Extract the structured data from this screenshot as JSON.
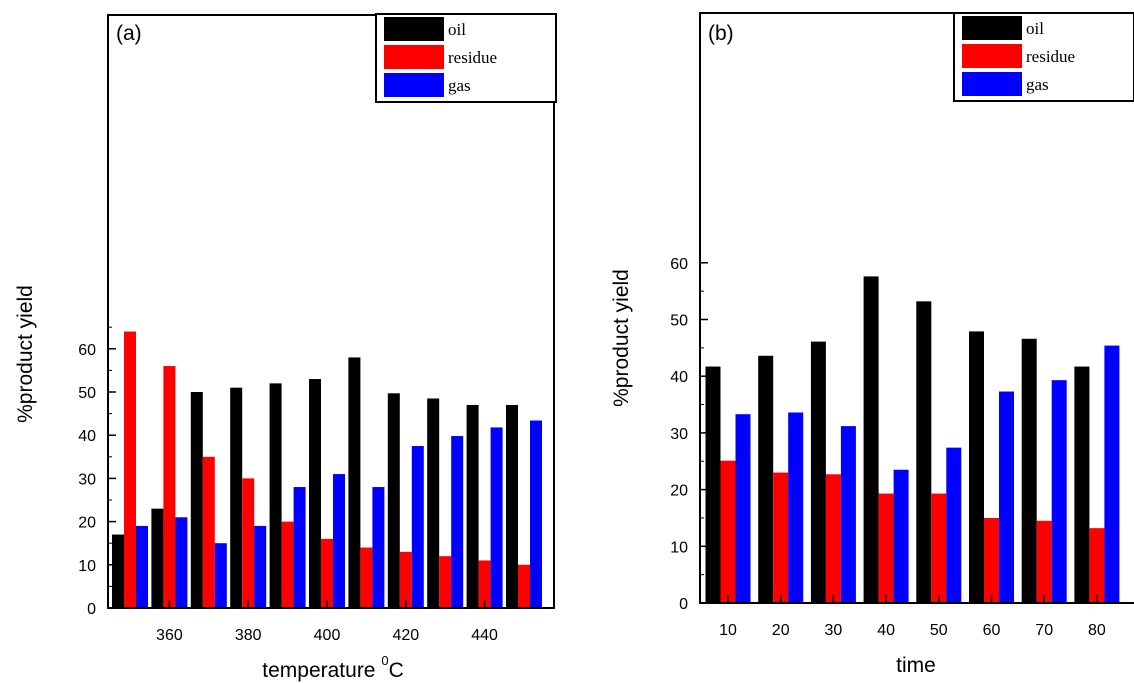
{
  "chart_data": [
    {
      "type": "bar",
      "panel_label": "(a)",
      "x": [
        350,
        360,
        370,
        380,
        390,
        400,
        410,
        420,
        430,
        440,
        450
      ],
      "x_tick_labels": [
        "360",
        "380",
        "400",
        "420",
        "440"
      ],
      "x_tick_values": [
        360,
        380,
        400,
        420,
        440
      ],
      "xlabel_main": "temperature ",
      "xlabel_sup": "0",
      "xlabel_end": "C",
      "ylabel": "%product yield",
      "ylim": [
        0,
        70
      ],
      "y_ticks": [
        0,
        10,
        20,
        30,
        40,
        50,
        60
      ],
      "legend_position": "top-right",
      "series": [
        {
          "name": "oil",
          "color": "#000000",
          "values": [
            17,
            23,
            50,
            51,
            52,
            53,
            58,
            49.7,
            48.5,
            47,
            47
          ]
        },
        {
          "name": "residue",
          "color": "#ff0000",
          "values": [
            64,
            56,
            35,
            30,
            20,
            16,
            14,
            13,
            12,
            11,
            10
          ]
        },
        {
          "name": "gas",
          "color": "#0000ff",
          "values": [
            19,
            21,
            15,
            19,
            28,
            31,
            28,
            37.5,
            39.8,
            41.8,
            43.4
          ]
        }
      ]
    },
    {
      "type": "bar",
      "panel_label": "(b)",
      "x": [
        10,
        20,
        30,
        40,
        50,
        60,
        70,
        80
      ],
      "x_tick_labels": [
        "10",
        "20",
        "30",
        "40",
        "50",
        "60",
        "70",
        "80"
      ],
      "x_tick_values": [
        10,
        20,
        30,
        40,
        50,
        60,
        70,
        80
      ],
      "xlabel": "time",
      "ylabel": "%product yield",
      "ylim": [
        0,
        62
      ],
      "y_ticks": [
        0,
        10,
        20,
        30,
        40,
        50,
        60
      ],
      "legend_position": "top-right",
      "series": [
        {
          "name": "oil",
          "color": "#000000",
          "values": [
            41.7,
            43.6,
            46.1,
            57.6,
            53.2,
            47.9,
            46.6,
            41.7
          ]
        },
        {
          "name": "residue",
          "color": "#ff0000",
          "values": [
            25.1,
            23,
            22.7,
            19.3,
            19.3,
            15,
            14.5,
            13.2
          ]
        },
        {
          "name": "gas",
          "color": "#0000ff",
          "values": [
            33.3,
            33.6,
            31.2,
            23.5,
            27.4,
            37.3,
            39.3,
            45.4
          ]
        }
      ]
    }
  ]
}
